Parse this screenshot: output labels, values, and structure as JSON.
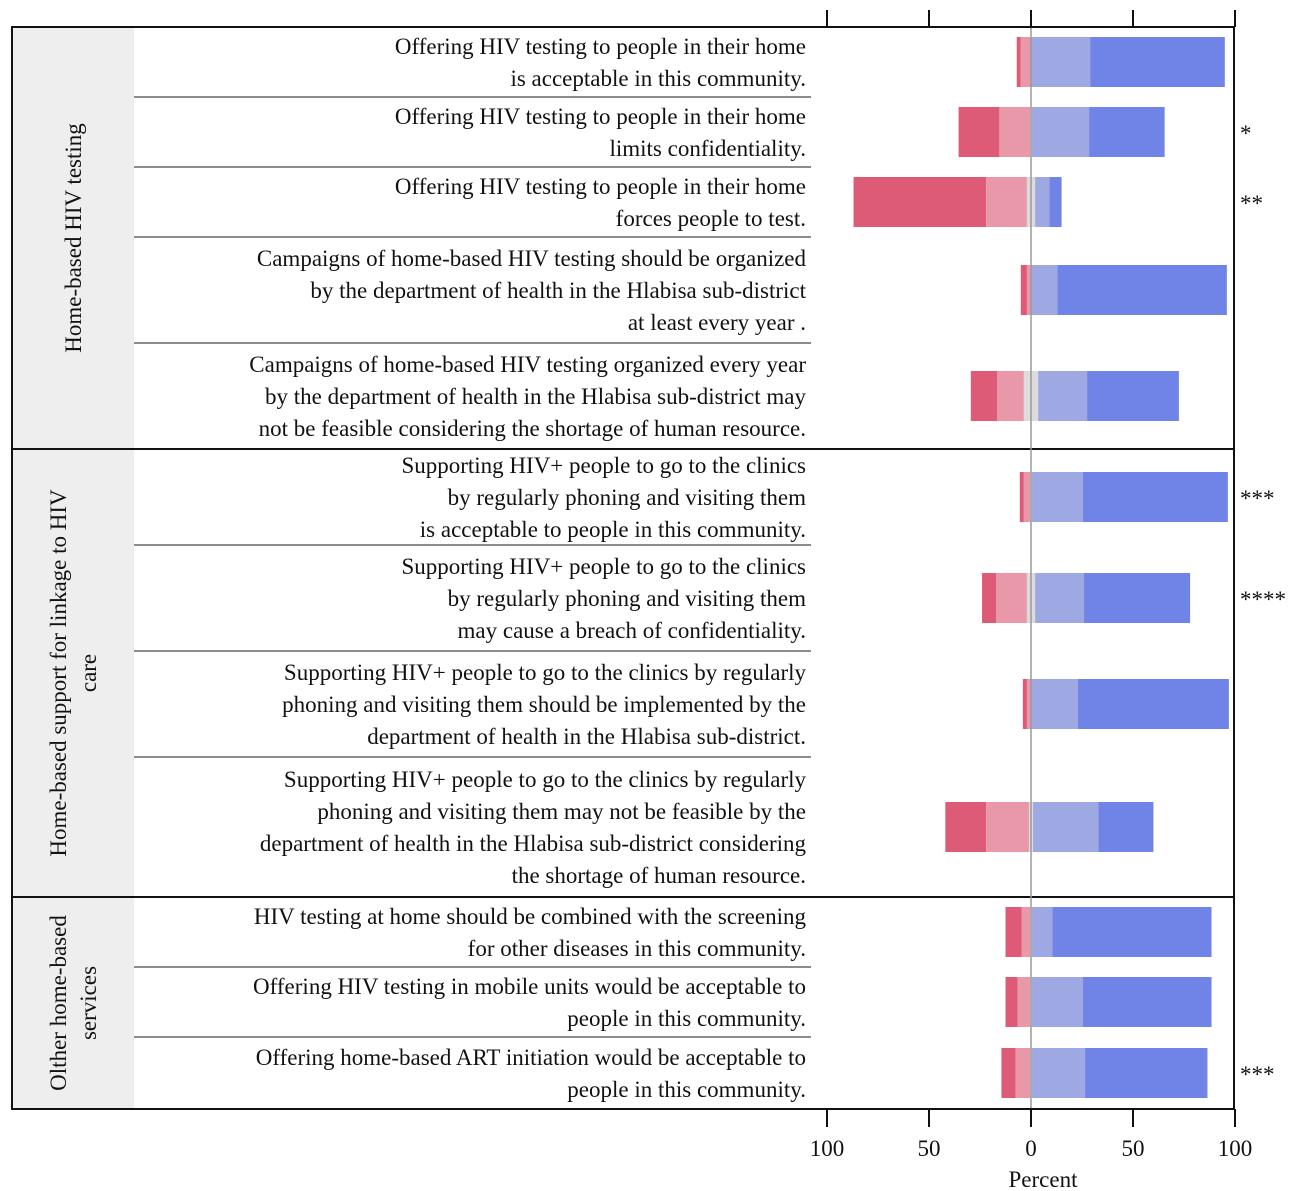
{
  "chart_data": {
    "type": "bar",
    "subtype": "diverging-stacked-likert",
    "xlabel": "Percent",
    "xlim": [
      -100,
      100
    ],
    "x_ticks": [
      -100,
      -50,
      0,
      50,
      100
    ],
    "x_tick_labels": [
      "100",
      "50",
      "0",
      "50",
      "100"
    ],
    "grid": false,
    "colors": {
      "strongly_disagree": "#de5b78",
      "disagree": "#e898a8",
      "neutral": "#dcdcdc",
      "agree": "#9ea9e4",
      "strongly_agree": "#7083e6"
    },
    "groups": [
      {
        "label": "Home-based HIV testing",
        "items": [
          {
            "lines": [
              "Offering HIV testing to people in their home",
              "is acceptable in this community."
            ],
            "values": {
              "strongly_disagree": 2,
              "disagree": 5,
              "neutral": 0,
              "agree": 29,
              "strongly_agree": 66
            },
            "sig": ""
          },
          {
            "lines": [
              "Offering HIV testing to people in their home",
              "limits confidentiality."
            ],
            "values": {
              "strongly_disagree": 20,
              "disagree": 15,
              "neutral": 1,
              "agree": 28,
              "strongly_agree": 37
            },
            "sig": "*"
          },
          {
            "lines": [
              "Offering HIV testing to people in their home",
              "forces people to test."
            ],
            "values": {
              "strongly_disagree": 65,
              "disagree": 20,
              "neutral": 4,
              "agree": 7,
              "strongly_agree": 6
            },
            "sig": "**"
          },
          {
            "lines": [
              "Campaigns of home-based HIV testing should be organized",
              "by the department of health in the Hlabisa sub-district",
              "at least every year ."
            ],
            "values": {
              "strongly_disagree": 3,
              "disagree": 2,
              "neutral": 0,
              "agree": 13,
              "strongly_agree": 83
            },
            "sig": ""
          },
          {
            "lines": [
              "Campaigns of home-based HIV testing organized every year",
              "by the department of health in the Hlabisa sub-district may",
              "not be feasible considering the shortage of human resource."
            ],
            "values": {
              "strongly_disagree": 13,
              "disagree": 13,
              "neutral": 7,
              "agree": 24,
              "strongly_agree": 45
            },
            "sig": ""
          }
        ]
      },
      {
        "label": "Home-based support for linkage to HIV care",
        "items": [
          {
            "lines": [
              "Supporting HIV+ people to go to the clinics",
              "by regularly phoning and visiting them",
              "is acceptable to people in this community."
            ],
            "values": {
              "strongly_disagree": 2,
              "disagree": 3,
              "neutral": 1,
              "agree": 25,
              "strongly_agree": 71
            },
            "sig": "***"
          },
          {
            "lines": [
              "Supporting HIV+ people to go to the clinics",
              "by regularly phoning and visiting them",
              "may cause a breach of confidentiality."
            ],
            "values": {
              "strongly_disagree": 7,
              "disagree": 15,
              "neutral": 4,
              "agree": 24,
              "strongly_agree": 52
            },
            "sig": "****"
          },
          {
            "lines": [
              "Supporting HIV+ people to go to the clinics by regularly",
              "phoning and visiting them should be implemented by the",
              "department of health in the Hlabisa sub-district."
            ],
            "values": {
              "strongly_disagree": 2,
              "disagree": 2,
              "neutral": 0,
              "agree": 23,
              "strongly_agree": 74
            },
            "sig": ""
          },
          {
            "lines": [
              "Supporting HIV+ people to go to the clinics by regularly",
              "phoning and visiting them may not be feasible by the",
              "department of health in the Hlabisa sub-district considering",
              "the shortage of human resource."
            ],
            "values": {
              "strongly_disagree": 20,
              "disagree": 21,
              "neutral": 2,
              "agree": 32,
              "strongly_agree": 27
            },
            "sig": ""
          }
        ]
      },
      {
        "label": "Olther home-based services",
        "items": [
          {
            "lines": [
              "HIV testing at home should be combined with the screening",
              "for other diseases in this community."
            ],
            "values": {
              "strongly_disagree": 8,
              "disagree": 4,
              "neutral": 1,
              "agree": 10,
              "strongly_agree": 78
            },
            "sig": ""
          },
          {
            "lines": [
              "Offering HIV testing in mobile units would be acceptable to",
              "people in this community."
            ],
            "values": {
              "strongly_disagree": 6,
              "disagree": 6,
              "neutral": 1,
              "agree": 25,
              "strongly_agree": 63
            },
            "sig": ""
          },
          {
            "lines": [
              "Offering home-based ART initiation would be acceptable to",
              "people in this community."
            ],
            "values": {
              "strongly_disagree": 7,
              "disagree": 7,
              "neutral": 1,
              "agree": 26,
              "strongly_agree": 60
            },
            "sig": "***"
          }
        ]
      }
    ]
  }
}
